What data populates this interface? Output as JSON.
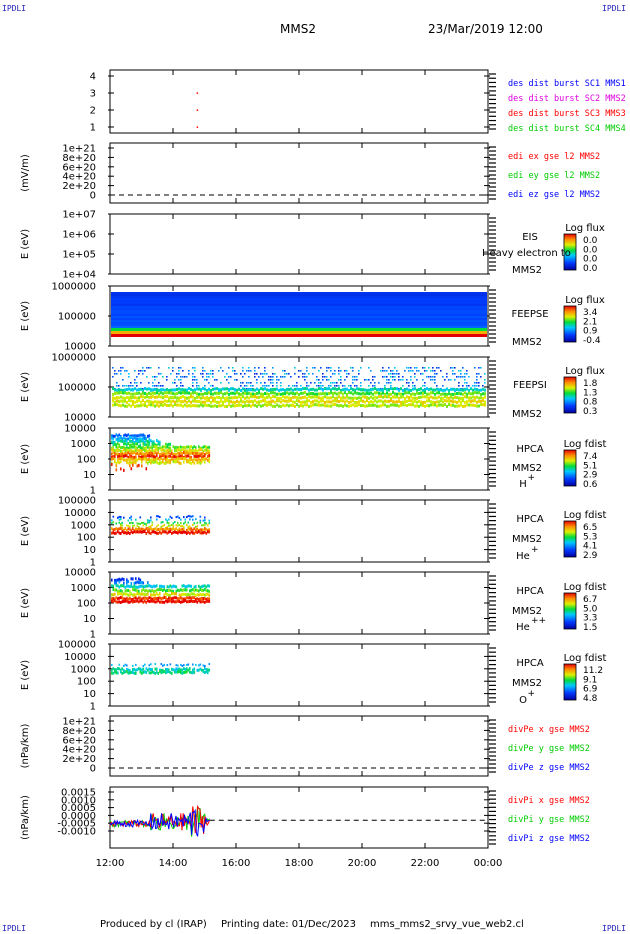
{
  "corner_label": "IPDLI",
  "header": {
    "spacecraft": "MMS2",
    "datetime": "23/Mar/2019 12:00"
  },
  "footer": {
    "produced_by": "Produced by cl (IRAP)",
    "printing_date": "Printing date: 01/Dec/2023",
    "file": "mms_mms2_srvy_vue_web2.cl"
  },
  "colors": {
    "blue": "#0000ff",
    "magenta": "#e000e0",
    "red": "#ff0000",
    "green": "#00cc00",
    "black": "#000000"
  },
  "chart_data": {
    "type": "multi-panel",
    "x_axis": {
      "range": [
        "12:00",
        "00:00"
      ],
      "ticks": [
        "12:00",
        "14:00",
        "16:00",
        "18:00",
        "20:00",
        "22:00",
        "00:00"
      ],
      "data_end": "15:10"
    },
    "panels": [
      {
        "id": "dist",
        "type": "scatter",
        "ylabel": "",
        "yticks": [
          "4",
          "3",
          "2",
          "1"
        ],
        "legend": [
          {
            "text": "des dist burst SC1 MMS1",
            "color": "#0000ff"
          },
          {
            "text": "des dist burst SC2 MMS2",
            "color": "#e000e0"
          },
          {
            "text": "des dist burst SC3 MMS3",
            "color": "#ff0000"
          },
          {
            "text": "des dist burst SC4 MMS4",
            "color": "#00cc00"
          }
        ],
        "points": [
          {
            "x": "14:45",
            "y": 3,
            "color": "#ff0000"
          },
          {
            "x": "14:45",
            "y": 2,
            "color": "#ff0000"
          },
          {
            "x": "14:45",
            "y": 1,
            "color": "#ff0000"
          }
        ]
      },
      {
        "id": "edi",
        "type": "line",
        "ylabel": "(mV/m)",
        "yticks": [
          "1e+21",
          "8e+20",
          "6e+20",
          "4e+20",
          "2e+20",
          "0"
        ],
        "legend": [
          {
            "text": "edi ex gse l2 MMS2",
            "color": "#ff0000"
          },
          {
            "text": "edi ey gse l2 MMS2",
            "color": "#00cc00"
          },
          {
            "text": "edi ez gse l2 MMS2",
            "color": "#0000ff"
          }
        ]
      },
      {
        "id": "eis",
        "type": "heatmap",
        "ylabel": "E (eV)",
        "yticks": [
          "1e+07",
          "1e+06",
          "1e+05",
          "1e+04"
        ],
        "side": [
          "EIS",
          "MMS2"
        ],
        "overlay_text": "Heavy electron to",
        "colorbar": {
          "title": "Log flux",
          "ticks": [
            "0.0",
            "0.0",
            "0.0",
            "0.0"
          ]
        }
      },
      {
        "id": "feepse",
        "type": "heatmap",
        "ylabel": "E (eV)",
        "yticks": [
          "1000000",
          "100000",
          "10000"
        ],
        "side": [
          "FEEPSE",
          "MMS2"
        ],
        "colorbar": {
          "title": "Log flux",
          "ticks": [
            "3.4",
            "2.1",
            "0.9",
            "-0.4"
          ]
        }
      },
      {
        "id": "feepsi",
        "type": "heatmap",
        "ylabel": "E (eV)",
        "yticks": [
          "1000000",
          "100000",
          "10000"
        ],
        "side": [
          "FEEPSI",
          "MMS2"
        ],
        "colorbar": {
          "title": "Log flux",
          "ticks": [
            "1.8",
            "1.3",
            "0.8",
            "0.3"
          ]
        }
      },
      {
        "id": "hpca-h",
        "type": "heatmap",
        "ylabel": "E (eV)",
        "yticks": [
          "10000",
          "1000",
          "100",
          "10",
          "1"
        ],
        "side": [
          "HPCA",
          "MMS2",
          "H",
          "+"
        ],
        "colorbar": {
          "title": "Log fdist",
          "ticks": [
            "7.4",
            "5.1",
            "2.9",
            "0.6"
          ]
        }
      },
      {
        "id": "hpca-he",
        "type": "heatmap",
        "ylabel": "E (eV)",
        "yticks": [
          "100000",
          "10000",
          "1000",
          "100",
          "10",
          "1"
        ],
        "side": [
          "HPCA",
          "MMS2",
          "He",
          "+"
        ],
        "colorbar": {
          "title": "Log fdist",
          "ticks": [
            "6.5",
            "5.3",
            "4.1",
            "2.9"
          ]
        }
      },
      {
        "id": "hpca-he2",
        "type": "heatmap",
        "ylabel": "E (eV)",
        "yticks": [
          "10000",
          "1000",
          "100",
          "10",
          "1"
        ],
        "side": [
          "HPCA",
          "MMS2",
          "He",
          "++"
        ],
        "colorbar": {
          "title": "Log fdist",
          "ticks": [
            "6.7",
            "5.0",
            "3.3",
            "1.5"
          ]
        }
      },
      {
        "id": "hpca-o",
        "type": "heatmap",
        "ylabel": "E (eV)",
        "yticks": [
          "100000",
          "10000",
          "1000",
          "100",
          "10",
          "1"
        ],
        "side": [
          "HPCA",
          "MMS2",
          "O",
          "+"
        ],
        "colorbar": {
          "title": "Log fdist",
          "ticks": [
            "11.2",
            "9.1",
            "6.9",
            "4.8"
          ]
        }
      },
      {
        "id": "divpe",
        "type": "line",
        "ylabel": "(nPa/km)",
        "yticks": [
          "1e+21",
          "8e+20",
          "6e+20",
          "4e+20",
          "2e+20",
          "0"
        ],
        "legend": [
          {
            "text": "divPe x gse MMS2",
            "color": "#ff0000"
          },
          {
            "text": "divPe y gse MMS2",
            "color": "#00cc00"
          },
          {
            "text": "divPe z gse MMS2",
            "color": "#0000ff"
          }
        ]
      },
      {
        "id": "divpi",
        "type": "line",
        "ylabel": "(nPa/km)",
        "yticks": [
          "0.0015",
          "0.0010",
          "0.0005",
          "0.0000",
          "-0.0005",
          "-0.0010"
        ],
        "ylim": [
          -0.00125,
          0.0015
        ],
        "legend": [
          {
            "text": "divPi x gse MMS2",
            "color": "#ff0000"
          },
          {
            "text": "divPi y gse MMS2",
            "color": "#00cc00"
          },
          {
            "text": "divPi z gse MMS2",
            "color": "#0000ff"
          }
        ]
      }
    ]
  }
}
